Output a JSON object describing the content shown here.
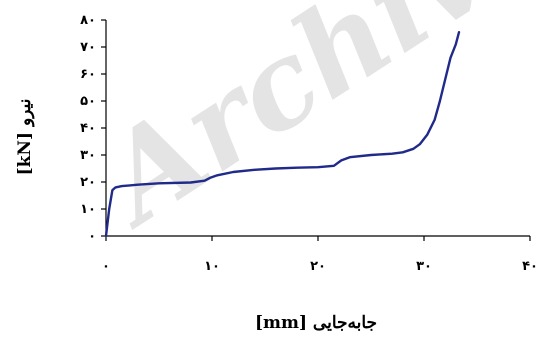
{
  "chart_data": {
    "type": "line",
    "xlabel": "جابه‌جایی [mm]",
    "ylabel": "نیرو [kN]",
    "xlim": [
      0,
      40
    ],
    "ylim": [
      0,
      80
    ],
    "xticks": [
      0,
      10,
      20,
      30,
      40
    ],
    "yticks": [
      0,
      10,
      20,
      30,
      40,
      50,
      60,
      70,
      80
    ],
    "xtick_labels": [
      "۰",
      "۱۰",
      "۲۰",
      "۳۰",
      "۴۰"
    ],
    "ytick_labels": [
      "۰",
      "۱۰",
      "۲۰",
      "۳۰",
      "۴۰",
      "۵۰",
      "۶۰",
      "۷۰",
      "۸۰"
    ],
    "grid": false,
    "watermark": "Archive",
    "colors": {
      "series": "#1f2a8a",
      "axis": "#000000",
      "watermark": "#cdcdcd"
    },
    "series": [
      {
        "x": [
          0,
          0.3,
          0.6,
          0.9,
          1.5,
          3,
          5,
          8,
          9.3,
          9.8,
          10.5,
          12,
          14,
          16,
          18,
          20,
          21.5,
          22.2,
          23,
          25,
          27,
          28,
          29,
          29.6,
          30.3,
          31,
          31.5,
          32,
          32.5,
          33,
          33.3
        ],
        "y": [
          0,
          10,
          17,
          18,
          18.5,
          19,
          19.5,
          19.8,
          20.5,
          21.5,
          22.5,
          23.7,
          24.5,
          25,
          25.3,
          25.5,
          26,
          28,
          29.2,
          30,
          30.5,
          31,
          32.3,
          34,
          37.5,
          43,
          50,
          58,
          66,
          71,
          75.5
        ]
      }
    ]
  }
}
